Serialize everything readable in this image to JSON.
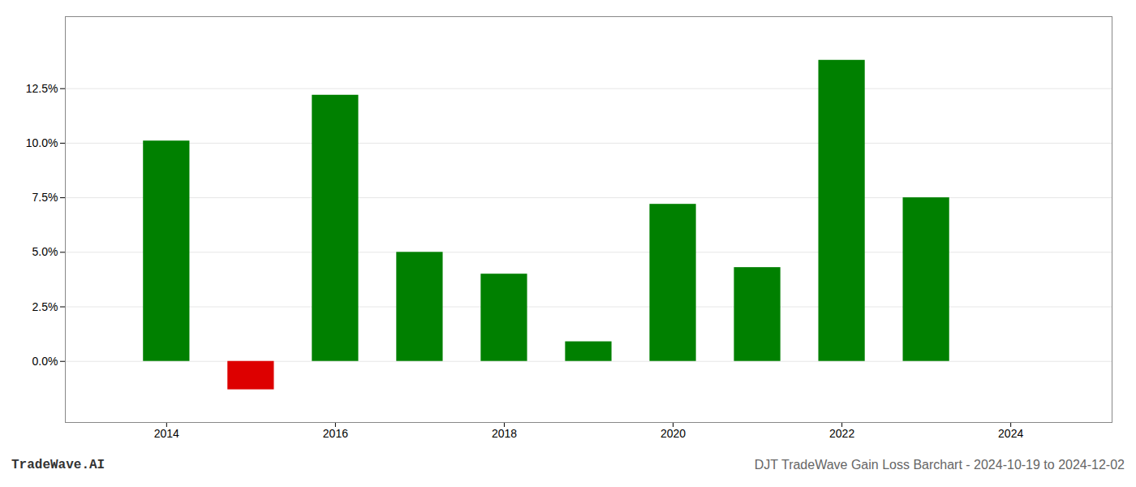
{
  "chart_data": {
    "type": "bar",
    "title": "DJT TradeWave Gain Loss Barchart - 2024-10-19 to 2024-12-02",
    "annotations": [
      "TradeWave.AI"
    ],
    "x": [
      2014,
      2015,
      2016,
      2017,
      2018,
      2019,
      2020,
      2021,
      2022,
      2023
    ],
    "values": [
      0.101,
      -0.013,
      0.122,
      0.05,
      0.04,
      0.009,
      0.072,
      0.043,
      0.138,
      0.075
    ],
    "colors": [
      "#008000",
      "#dd0000",
      "#008000",
      "#008000",
      "#008000",
      "#008000",
      "#008000",
      "#008000",
      "#008000",
      "#008000"
    ],
    "xlim": [
      2012.8,
      2025.2
    ],
    "xticks": [
      2014,
      2016,
      2018,
      2020,
      2022,
      2024
    ],
    "ylim": [
      -0.028,
      0.158
    ],
    "yticks": [
      {
        "value": 0.0,
        "label": "0.0%"
      },
      {
        "value": 0.025,
        "label": "2.5%"
      },
      {
        "value": 0.05,
        "label": "5.0%"
      },
      {
        "value": 0.075,
        "label": "7.5%"
      },
      {
        "value": 0.1,
        "label": "10.0%"
      },
      {
        "value": 0.125,
        "label": "12.5%"
      }
    ],
    "grid": true
  }
}
